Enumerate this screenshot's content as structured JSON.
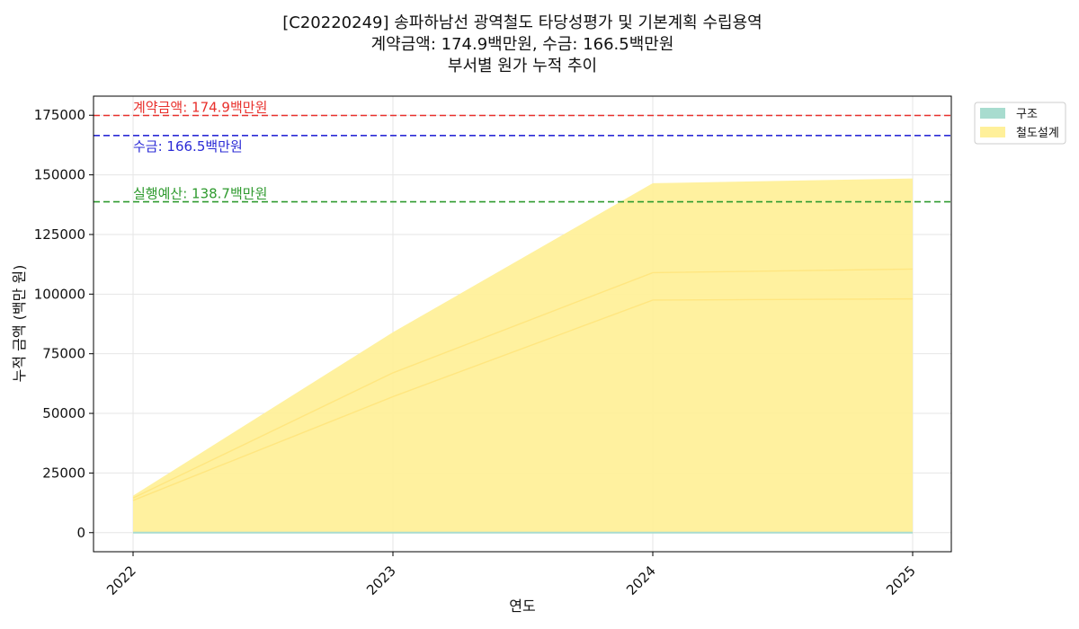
{
  "chart_data": {
    "type": "area",
    "title_lines": [
      "[C20220249] 송파하남선 광역철도 타당성평가 및 기본계획 수립용역",
      "계약금액: 174.9백만원, 수금: 166.5백만원",
      "부서별 원가 누적 추이"
    ],
    "xlabel": "연도",
    "ylabel": "누적 금액 (백만 원)",
    "x": [
      "2022",
      "2023",
      "2024",
      "2025"
    ],
    "ylim": [
      -8000,
      183000
    ],
    "yticks": [
      0,
      25000,
      50000,
      75000,
      100000,
      125000,
      150000,
      175000
    ],
    "grid": true,
    "legend_position": "outside-top-right",
    "series": [
      {
        "name": "구조",
        "values": [
          0,
          0,
          0,
          0
        ],
        "color": "#a8dccf"
      },
      {
        "name": "철도설계",
        "values": [
          15500,
          84000,
          146500,
          148500
        ],
        "color": "#fff09a"
      }
    ],
    "inner_lines": [
      {
        "values": [
          14500,
          67000,
          109000,
          110500
        ],
        "color": "#ffe680"
      },
      {
        "values": [
          13500,
          57000,
          97500,
          98000
        ],
        "color": "#ffe680"
      }
    ],
    "reference_lines": [
      {
        "label": "계약금액: 174.9백만원",
        "value": 174900,
        "color": "#e8302c"
      },
      {
        "label": "수금: 166.5백만원",
        "value": 166500,
        "color": "#2b2bd6"
      },
      {
        "label": "실행예산: 138.7백만원",
        "value": 138700,
        "color": "#2e9a2e"
      }
    ]
  }
}
